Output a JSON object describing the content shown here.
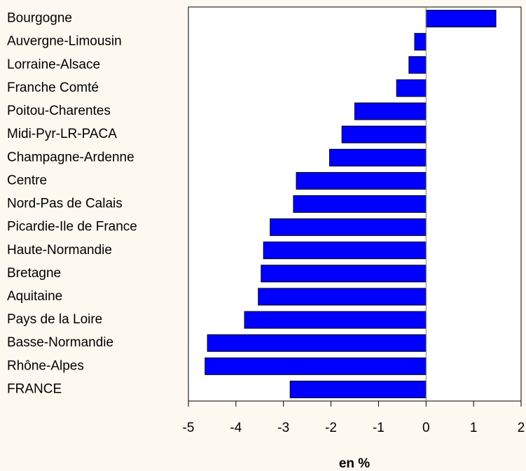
{
  "chart_data": {
    "type": "barh",
    "categories": [
      "Bourgogne",
      "Auvergne-Limousin",
      "Lorraine-Alsace",
      "Franche Comté",
      "Poitou-Charentes",
      "Midi-Pyr-LR-PACA",
      "Champagne-Ardenne",
      "Centre",
      "Nord-Pas de Calais",
      "Picardie-Ile de France",
      "Haute-Normandie",
      "Bretagne",
      "Aquitaine",
      "Pays de la Loire",
      "Basse-Normandie",
      "Rhône-Alpes",
      "FRANCE"
    ],
    "values": [
      1.47,
      -0.24,
      -0.36,
      -0.62,
      -1.5,
      -1.77,
      -2.03,
      -2.73,
      -2.79,
      -3.28,
      -3.42,
      -3.47,
      -3.53,
      -3.82,
      -4.6,
      -4.65,
      -2.86
    ],
    "color": "#0000ff",
    "xlabel": "en %",
    "xlim": [
      -5,
      2
    ],
    "xticks": [
      -5,
      -4,
      -3,
      -2,
      -1,
      0,
      1,
      2
    ]
  }
}
